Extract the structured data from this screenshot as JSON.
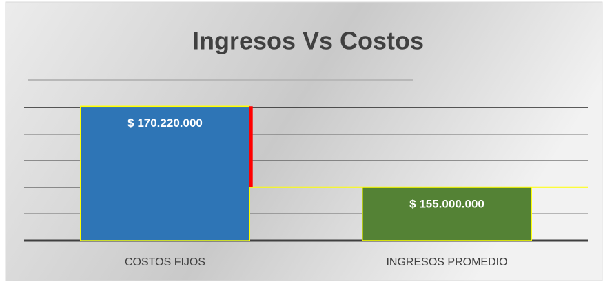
{
  "chart_data": {
    "type": "bar",
    "title": "Ingresos Vs Costos",
    "categories": [
      "COSTOS FIJOS",
      "INGRESOS PROMEDIO"
    ],
    "values": [
      170220000,
      155000000
    ],
    "value_labels": [
      "$ 170.220.000",
      "$ 155.000.000"
    ],
    "colors": [
      "#2e75b6",
      "#548235"
    ],
    "ylim": [
      145000000,
      170000000
    ],
    "yticks": [
      145000000,
      150000000,
      155000000,
      160000000,
      165000000,
      170000000
    ],
    "grid": true
  }
}
